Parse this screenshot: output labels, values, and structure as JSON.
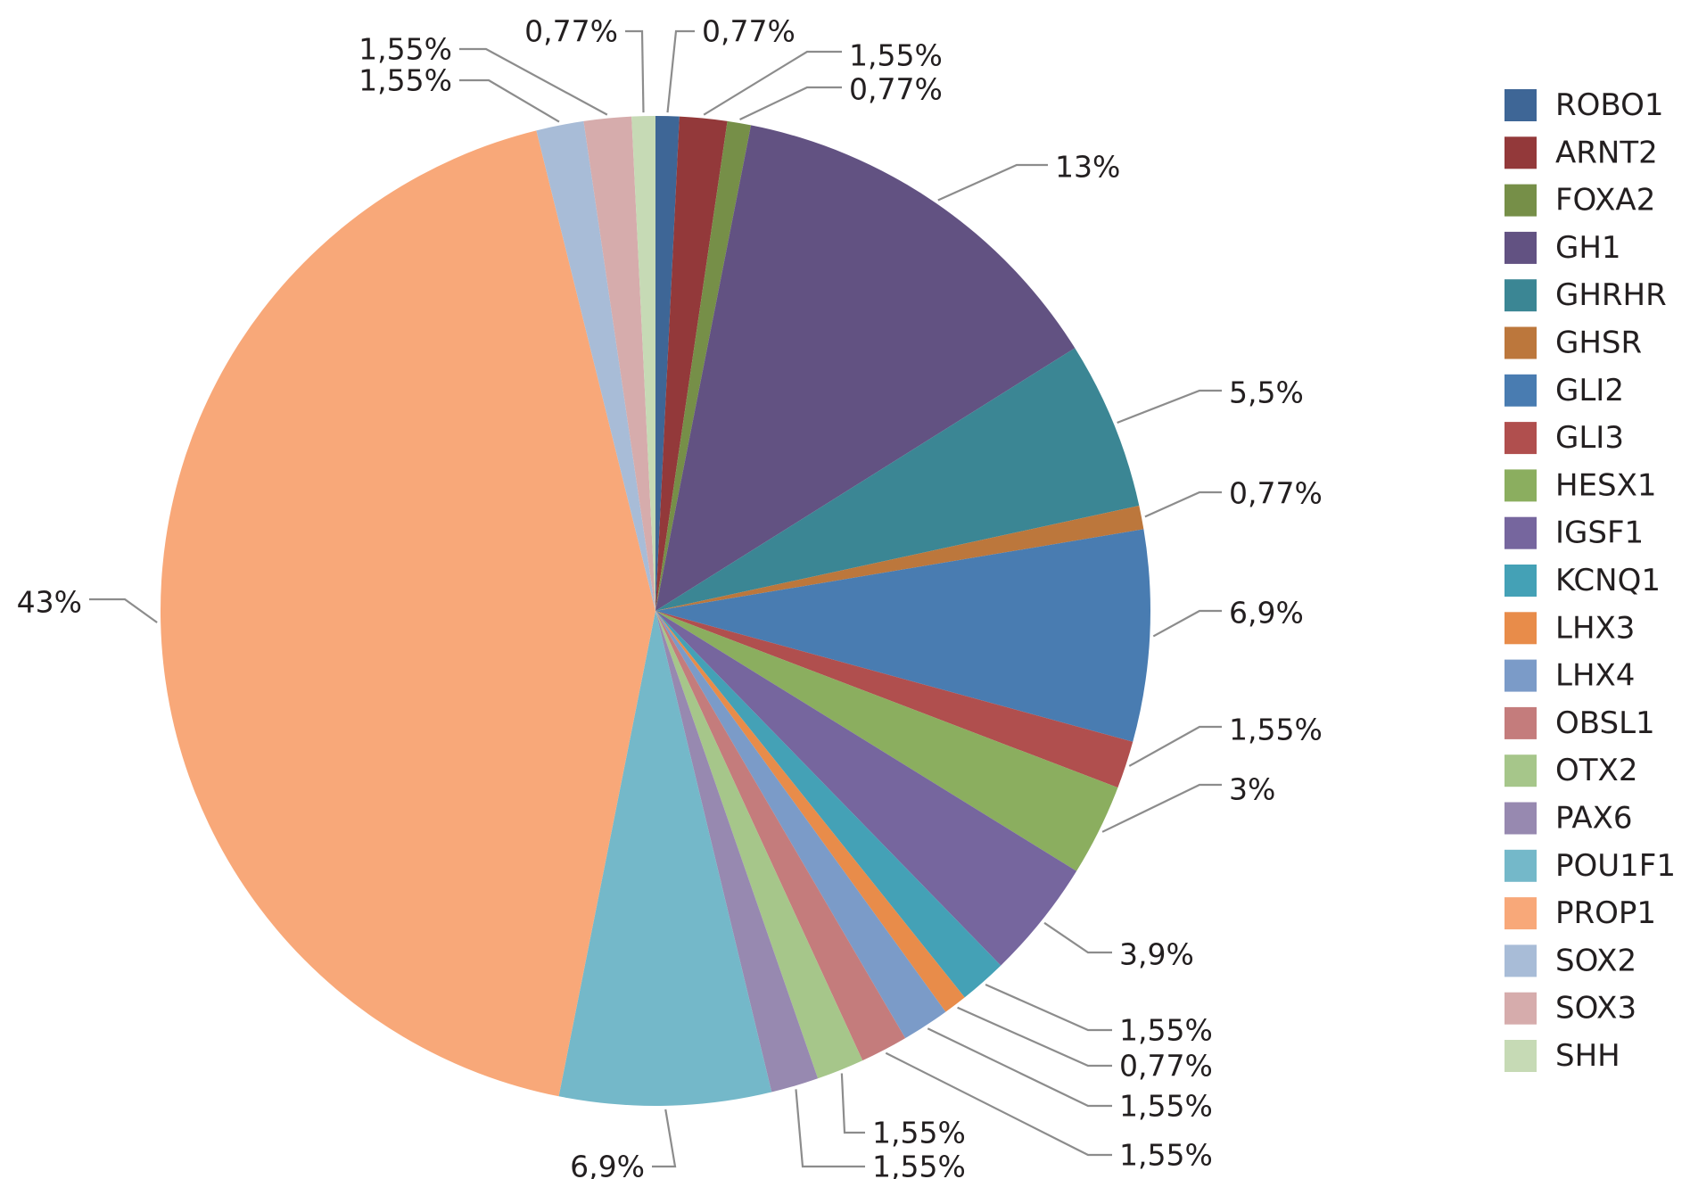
{
  "chart_data": {
    "type": "pie",
    "title": "",
    "legend_position": "right",
    "start_angle_deg": 0,
    "direction": "clockwise",
    "slices": [
      {
        "name": "ROBO1",
        "value": 0.77,
        "label": "0,77%",
        "color": "#3e6696"
      },
      {
        "name": "ARNT2",
        "value": 1.55,
        "label": "1,55%",
        "color": "#93393a"
      },
      {
        "name": "FOXA2",
        "value": 0.77,
        "label": "0,77%",
        "color": "#768f48"
      },
      {
        "name": "GH1",
        "value": 13,
        "label": "13%",
        "color": "#625282"
      },
      {
        "name": "GHRHR",
        "value": 5.5,
        "label": "5,5%",
        "color": "#3b8694"
      },
      {
        "name": "GHSR",
        "value": 0.77,
        "label": "0,77%",
        "color": "#bc773c"
      },
      {
        "name": "GLI2",
        "value": 6.9,
        "label": "6,9%",
        "color": "#497cb1"
      },
      {
        "name": "GLI3",
        "value": 1.55,
        "label": "1,55%",
        "color": "#b04f4e"
      },
      {
        "name": "HESX1",
        "value": 3,
        "label": "3%",
        "color": "#8bae5f"
      },
      {
        "name": "IGSF1",
        "value": 3.9,
        "label": "3,9%",
        "color": "#76669e"
      },
      {
        "name": "KCNQ1",
        "value": 1.55,
        "label": "1,55%",
        "color": "#44a1b6"
      },
      {
        "name": "LHX3",
        "value": 0.77,
        "label": "0,77%",
        "color": "#e88c4a"
      },
      {
        "name": "LHX4",
        "value": 1.55,
        "label": "1,55%",
        "color": "#7b9bc8"
      },
      {
        "name": "OBSL1",
        "value": 1.55,
        "label": "1,55%",
        "color": "#c47c7c"
      },
      {
        "name": "OTX2",
        "value": 1.55,
        "label": "1,55%",
        "color": "#a6c68a"
      },
      {
        "name": "PAX6",
        "value": 1.55,
        "label": "1,55%",
        "color": "#9789b0"
      },
      {
        "name": "POU1F1",
        "value": 6.9,
        "label": "6,9%",
        "color": "#74b8c9"
      },
      {
        "name": "PROP1",
        "value": 43,
        "label": "43%",
        "color": "#f8a879"
      },
      {
        "name": "SOX2",
        "value": 1.55,
        "label": "1,55%",
        "color": "#a8bcd7"
      },
      {
        "name": "SOX3",
        "value": 1.55,
        "label": "1,55%",
        "color": "#d6acac"
      },
      {
        "name": "SHH",
        "value": 0.77,
        "label": "0,77%",
        "color": "#c6dab5"
      }
    ]
  }
}
